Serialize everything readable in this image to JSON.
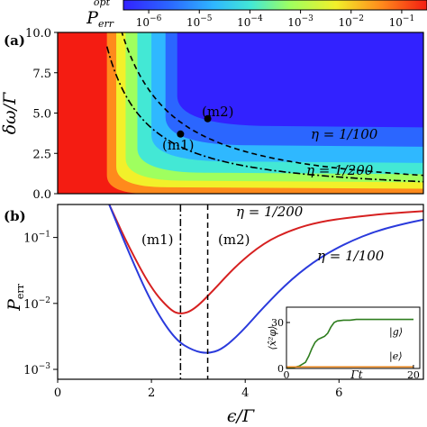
{
  "chart_data": [
    {
      "id": "colorbar",
      "type": "heatmap",
      "label_main": "P",
      "label_sub": "err",
      "label_sup": "opt",
      "ticks": [
        {
          "base": "10",
          "exp": "−6"
        },
        {
          "base": "10",
          "exp": "−5"
        },
        {
          "base": "10",
          "exp": "−4"
        },
        {
          "base": "10",
          "exp": "−3"
        },
        {
          "base": "10",
          "exp": "−2"
        },
        {
          "base": "10",
          "exp": "−1"
        }
      ],
      "log_range": [
        -6.5,
        -0.5
      ]
    },
    {
      "id": "panel-a",
      "type": "heatmap",
      "panel_label": "(a)",
      "ylabel_main": "δω",
      "ylabel_den": "Γ",
      "xlim": [
        0,
        7.8
      ],
      "ylim": [
        0,
        10
      ],
      "yticks": [
        "0.0",
        "2.5",
        "5.0",
        "7.5",
        "10.0"
      ],
      "ytick_values": [
        0,
        2.5,
        5.0,
        7.5,
        10.0
      ],
      "curves": [
        {
          "name": "η = 1/100",
          "style": "dashed",
          "k": 14.8
        },
        {
          "name": "η = 1/200",
          "style": "dashdot",
          "k": 9.7
        }
      ],
      "points": [
        {
          "name": "(m2)",
          "x": 3.2,
          "y": 4.65
        },
        {
          "name": "(m1)",
          "x": 2.62,
          "y": 3.7
        }
      ],
      "curve_labels": [
        "η = 1/100",
        "η = 1/200"
      ]
    },
    {
      "id": "panel-b",
      "type": "line",
      "panel_label": "(b)",
      "ylabel_main": "P",
      "ylabel_sub": "err",
      "xlabel_main": "ϵ",
      "xlabel_den": "Γ",
      "xlim": [
        0,
        7.8
      ],
      "ylog_range": [
        -3.15,
        -0.5
      ],
      "xticks": [
        "0",
        "2",
        "4",
        "6"
      ],
      "xtick_values": [
        0,
        2,
        4,
        6
      ],
      "yticks": [
        {
          "base": "10",
          "exp": "−1",
          "value": -1
        },
        {
          "base": "10",
          "exp": "−2",
          "value": -2
        },
        {
          "base": "10",
          "exp": "−3",
          "value": -3
        }
      ],
      "series": [
        {
          "name": "η = 1/200",
          "color": "#d62020",
          "x": [
            1.1,
            1.5,
            2.0,
            2.4,
            2.62,
            2.9,
            3.3,
            3.8,
            4.4,
            5.0,
            5.6,
            6.3,
            7.0,
            7.8
          ],
          "log10_y": [
            -0.5,
            -1.12,
            -1.78,
            -2.1,
            -2.17,
            -2.1,
            -1.82,
            -1.43,
            -1.08,
            -0.88,
            -0.76,
            -0.69,
            -0.64,
            -0.6
          ]
        },
        {
          "name": "η = 1/100",
          "color": "#2a3adc",
          "x": [
            1.1,
            1.5,
            2.0,
            2.5,
            2.9,
            3.2,
            3.5,
            3.9,
            4.4,
            5.0,
            5.6,
            6.2,
            6.8,
            7.4,
            7.8
          ],
          "log10_y": [
            -0.5,
            -1.2,
            -2.0,
            -2.55,
            -2.72,
            -2.76,
            -2.7,
            -2.45,
            -2.05,
            -1.62,
            -1.3,
            -1.07,
            -0.9,
            -0.79,
            -0.73
          ]
        }
      ],
      "markers": [
        {
          "name": "(m1)",
          "x": 2.62,
          "style": "dashdot"
        },
        {
          "name": "(m2)",
          "x": 3.2,
          "style": "dashed"
        }
      ],
      "series_labels": [
        "η = 1/200",
        "η = 1/100"
      ]
    },
    {
      "id": "inset",
      "type": "line",
      "xlim": [
        0,
        21
      ],
      "ylim": [
        0,
        40
      ],
      "xticks": [
        "0",
        "20"
      ],
      "xtick_values": [
        0,
        20
      ],
      "yticks": [
        "0",
        "30"
      ],
      "ytick_values": [
        0,
        30
      ],
      "xlabel": "Γt",
      "ylabel": "⟨x̂²φ⟩",
      "series": [
        {
          "name": "|g⟩",
          "color": "#2e7d1e",
          "x": [
            0,
            1,
            2,
            3,
            3.5,
            4,
            4.5,
            5,
            5.5,
            6,
            6.5,
            7,
            7.5,
            8,
            9,
            10,
            11,
            12,
            14,
            16,
            18,
            20
          ],
          "y": [
            0,
            0.5,
            1.5,
            4,
            8,
            13,
            17,
            19,
            20,
            21,
            23,
            27,
            30,
            31,
            31.5,
            31.5,
            32,
            32,
            32,
            32,
            32,
            32
          ]
        },
        {
          "name": "|e⟩",
          "color": "#e8861e",
          "x": [
            0,
            20
          ],
          "y": [
            1,
            1
          ]
        }
      ]
    }
  ]
}
